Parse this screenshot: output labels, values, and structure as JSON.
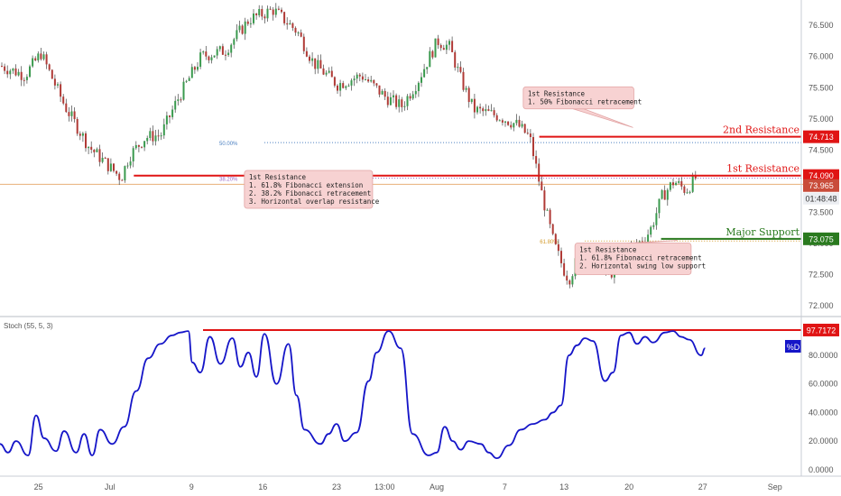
{
  "chart_data": [
    {
      "type": "candlestick",
      "title": "",
      "ylim": [
        71.9,
        76.85
      ],
      "y_ticks": [
        "72.000",
        "72.500",
        "73.000",
        "73.500",
        "74.000",
        "74.500",
        "75.000",
        "75.500",
        "76.000",
        "76.500"
      ],
      "y_tick_values": [
        72.0,
        72.5,
        73.0,
        73.5,
        74.0,
        74.5,
        75.0,
        75.5,
        76.0,
        76.5
      ],
      "x_ticks": [
        "25",
        "Jul",
        "9",
        "16",
        "23",
        "13:00",
        "Aug",
        "7",
        "13",
        "20",
        "27",
        "Sep"
      ],
      "x_tick_positions": [
        0.048,
        0.137,
        0.239,
        0.328,
        0.42,
        0.48,
        0.545,
        0.63,
        0.704,
        0.785,
        0.877,
        0.967
      ],
      "price_path": [
        [
          0.0,
          75.85
        ],
        [
          0.03,
          75.7
        ],
        [
          0.05,
          76.05
        ],
        [
          0.08,
          75.2
        ],
        [
          0.11,
          74.55
        ],
        [
          0.15,
          74.05
        ],
        [
          0.16,
          74.4
        ],
        [
          0.18,
          74.7
        ],
        [
          0.2,
          74.75
        ],
        [
          0.22,
          75.3
        ],
        [
          0.25,
          76.0
        ],
        [
          0.28,
          76.1
        ],
        [
          0.31,
          76.6
        ],
        [
          0.34,
          76.75
        ],
        [
          0.37,
          76.4
        ],
        [
          0.39,
          75.9
        ],
        [
          0.42,
          75.55
        ],
        [
          0.45,
          75.7
        ],
        [
          0.48,
          75.35
        ],
        [
          0.5,
          75.2
        ],
        [
          0.52,
          75.6
        ],
        [
          0.535,
          76.0
        ],
        [
          0.545,
          76.25
        ],
        [
          0.56,
          76.15
        ],
        [
          0.575,
          75.6
        ],
        [
          0.59,
          75.15
        ],
        [
          0.62,
          75.05
        ],
        [
          0.645,
          74.9
        ],
        [
          0.66,
          74.7
        ],
        [
          0.675,
          73.8
        ],
        [
          0.69,
          73.0
        ],
        [
          0.705,
          72.5
        ],
        [
          0.71,
          72.45
        ],
        [
          0.725,
          72.95
        ],
        [
          0.74,
          72.75
        ],
        [
          0.76,
          72.5
        ],
        [
          0.775,
          72.8
        ],
        [
          0.8,
          73.05
        ],
        [
          0.81,
          73.2
        ],
        [
          0.825,
          73.75
        ],
        [
          0.84,
          74.0
        ],
        [
          0.855,
          73.85
        ],
        [
          0.87,
          74.1
        ]
      ],
      "current_price": "73.965",
      "countdown": "01:48:48",
      "levels": [
        {
          "name": "2nd Resistance",
          "value": "74.713",
          "price": 74.713,
          "color": "#e01414",
          "x_start": 0.673
        },
        {
          "name": "1st Resistance",
          "value": "74.090",
          "price": 74.09,
          "color": "#e01414",
          "x_start": 0.167
        },
        {
          "name": "Major Support",
          "value": "73.075",
          "price": 73.075,
          "color": "#2a7a1f",
          "x_start": 0.825
        }
      ],
      "fib_lines": [
        {
          "label": "50.00%",
          "price": 74.62,
          "color": "#4a7fc0",
          "x_start": 0.33
        },
        {
          "label": "38.20%",
          "price": 74.05,
          "color": "#9a66c6",
          "x_start": 0.33
        },
        {
          "label": "61.80%",
          "price": 73.04,
          "color": "#d39a2a",
          "x_start": 0.73
        }
      ],
      "annotations": [
        {
          "lines": [
            "1st Resistance",
            "1.  50%  Fibonacci retracement"
          ],
          "x": 0.722,
          "y": 0.31,
          "w": 0.138,
          "h": 0.07,
          "px": 0.79,
          "py": 0.404
        },
        {
          "lines": [
            "1st Resistance",
            "1. 61.8% Fibonacci extension",
            "2. 38.2% Fibonacci retracement",
            "3. Horizontal overlap resistance"
          ],
          "x": 0.385,
          "y": 0.6,
          "w": 0.16,
          "h": 0.12,
          "px": 0.465,
          "py": 0.555
        },
        {
          "lines": [
            "1st Resistance",
            "1. 61.8% Fibonacci retracement",
            "2. Horizontal swing low support"
          ],
          "x": 0.79,
          "y": 0.82,
          "w": 0.145,
          "h": 0.1,
          "px": 0.845,
          "py": 0.762
        }
      ]
    },
    {
      "type": "line",
      "title": "Stoch (55, 5, 3)",
      "series": [
        {
          "name": "%D",
          "color": "#1515c8"
        }
      ],
      "ylim": [
        0,
        100
      ],
      "y_ticks": [
        "0.0000",
        "20.0000",
        "40.0000",
        "60.0000",
        "80.0000"
      ],
      "y_tick_values": [
        0,
        20,
        40,
        60,
        80
      ],
      "level": {
        "value": "97.7172",
        "price": 97.7172,
        "color": "#e01414"
      },
      "x": [
        0.0,
        0.01,
        0.02,
        0.035,
        0.045,
        0.055,
        0.07,
        0.08,
        0.095,
        0.105,
        0.115,
        0.125,
        0.14,
        0.155,
        0.17,
        0.185,
        0.2,
        0.215,
        0.225,
        0.235,
        0.24,
        0.25,
        0.262,
        0.275,
        0.29,
        0.3,
        0.31,
        0.32,
        0.33,
        0.345,
        0.36,
        0.37,
        0.38,
        0.4,
        0.41,
        0.42,
        0.43,
        0.445,
        0.46,
        0.47,
        0.485,
        0.5,
        0.515,
        0.535,
        0.545,
        0.555,
        0.565,
        0.575,
        0.585,
        0.6,
        0.61,
        0.62,
        0.635,
        0.65,
        0.665,
        0.68,
        0.69,
        0.7,
        0.71,
        0.72,
        0.73,
        0.74,
        0.755,
        0.765,
        0.775,
        0.785,
        0.795,
        0.805,
        0.815,
        0.83,
        0.84,
        0.85,
        0.86,
        0.875,
        0.88
      ],
      "values": [
        18,
        12,
        20,
        10,
        38,
        22,
        13,
        27,
        12,
        25,
        10,
        28,
        18,
        30,
        55,
        78,
        88,
        94,
        96,
        97,
        75,
        68,
        93,
        74,
        92,
        72,
        82,
        65,
        95,
        60,
        88,
        52,
        28,
        18,
        25,
        32,
        20,
        26,
        62,
        82,
        97,
        85,
        25,
        10,
        12,
        30,
        20,
        14,
        20,
        18,
        12,
        8,
        17,
        28,
        32,
        35,
        40,
        45,
        80,
        87,
        92,
        90,
        62,
        68,
        94,
        96,
        88,
        93,
        89,
        96,
        97,
        93,
        91,
        80,
        85
      ]
    }
  ]
}
